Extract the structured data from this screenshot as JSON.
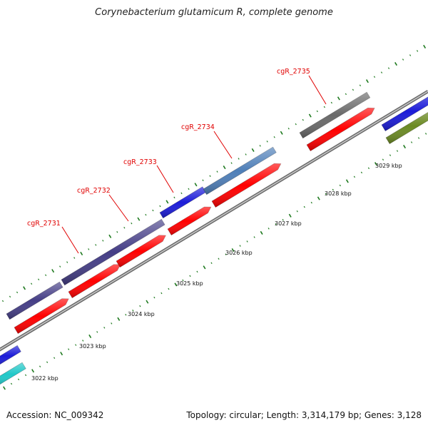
{
  "title": "Corynebacterium glutamicum R, complete genome",
  "footer": {
    "accession": "Accession: NC_009342",
    "summary": "Topology: circular; Length: 3,314,179 bp; Genes: 3,128"
  },
  "gene_labels": [
    "cgR_2731",
    "cgR_2732",
    "cgR_2733",
    "cgR_2734",
    "cgR_2735"
  ],
  "kbp_labels": [
    "3022 kbp",
    "3023 kbp",
    "3024 kbp",
    "3025 kbp",
    "3026 kbp",
    "3027 kbp",
    "3028 kbp",
    "3029 kbp"
  ],
  "colors": {
    "cds": "#ff0000",
    "gene_dark": "#453e86",
    "gene_blue": "#1c1cd8",
    "gene_steel": "#4f7fb8",
    "gene_gray": "#6a6a6a",
    "gene_cyan": "#20c8c8",
    "gene_olive": "#6b8a23",
    "backbone": "#8c8c8c",
    "tick": "#1f7a1f",
    "label": "#e00000"
  }
}
